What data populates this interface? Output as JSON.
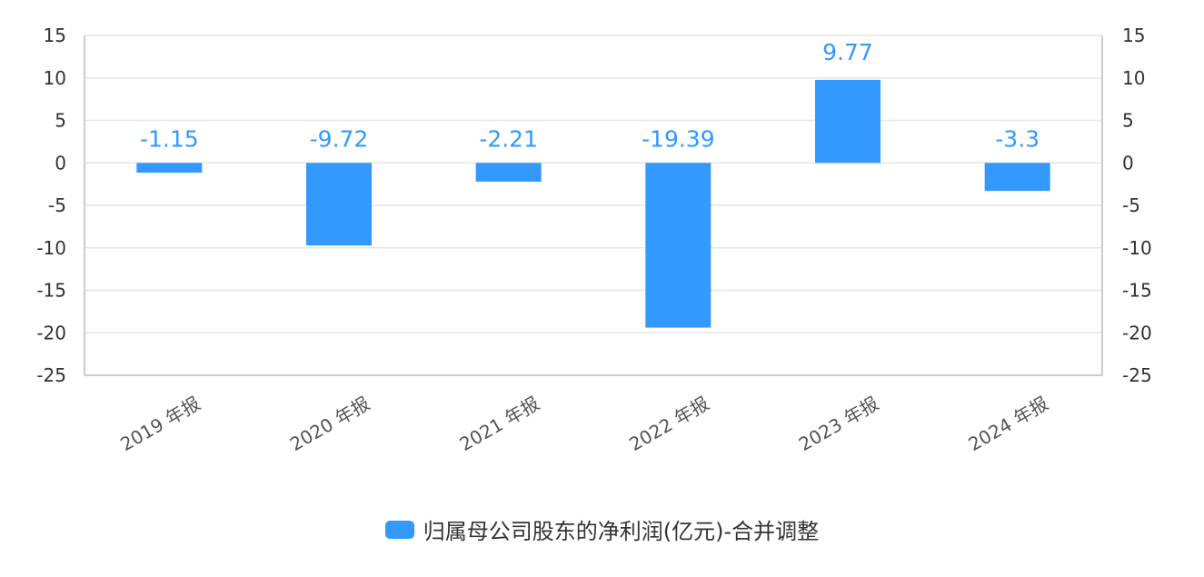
{
  "chart_data": {
    "type": "bar",
    "categories": [
      "2019 年报",
      "2020 年报",
      "2021 年报",
      "2022 年报",
      "2023 年报",
      "2024 年报"
    ],
    "series": [
      {
        "name": "归属母公司股东的净利润(亿元)-合并调整",
        "values": [
          -1.15,
          -9.72,
          -2.21,
          -19.39,
          9.77,
          -3.3
        ]
      }
    ],
    "data_labels": [
      "-1.15",
      "-9.72",
      "-2.21",
      "-19.39",
      "9.77",
      "-3.3"
    ],
    "ylim": [
      -25,
      15
    ],
    "yticks": [
      15,
      10,
      5,
      0,
      -5,
      -10,
      -15,
      -20,
      -25
    ],
    "secondary_ylim": [
      -25,
      15
    ],
    "grid": true,
    "legend": "bottom",
    "colors": {
      "bar": "#3399ff",
      "label": "#3399ff",
      "grid": "#e6e6e6",
      "axis": "#cccccc"
    }
  },
  "legend": {
    "label": "归属母公司股东的净利润(亿元)-合并调整"
  }
}
